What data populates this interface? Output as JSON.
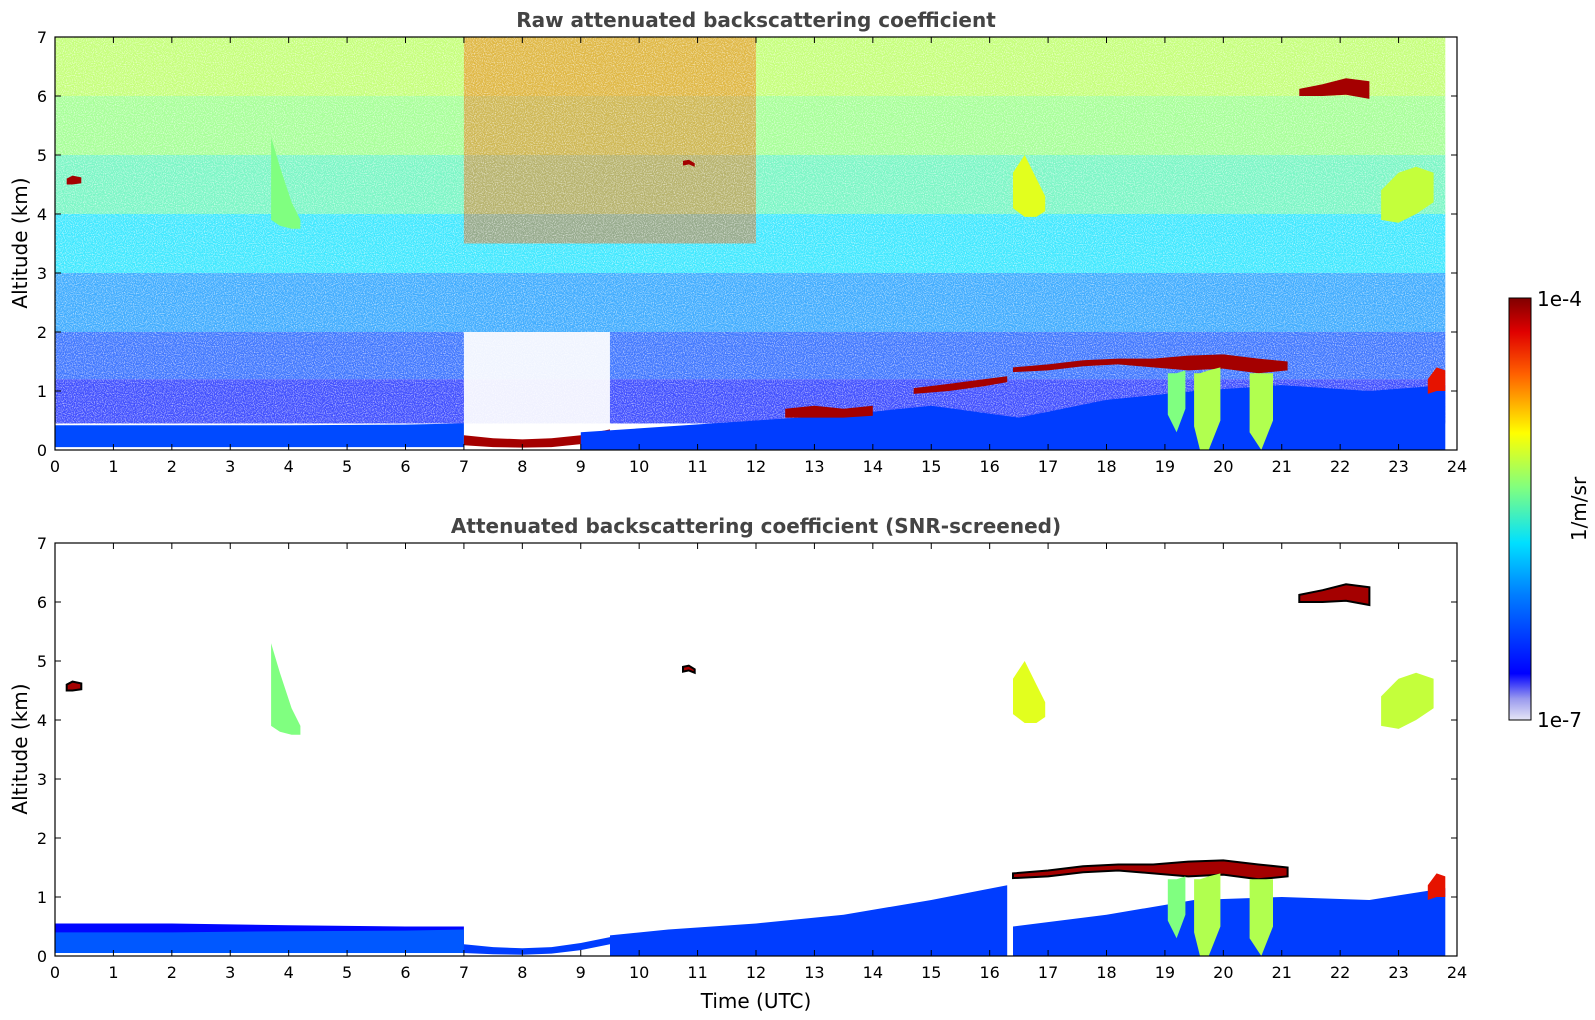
{
  "chart_data": [
    {
      "type": "heatmap",
      "title": "Raw attenuated backscattering coefficient",
      "xlabel": "",
      "ylabel": "Altitude (km)",
      "xlim": [
        0,
        24
      ],
      "ylim": [
        0,
        7
      ],
      "x_ticks": [
        0,
        1,
        2,
        3,
        4,
        5,
        6,
        7,
        8,
        9,
        10,
        11,
        12,
        13,
        14,
        15,
        16,
        17,
        18,
        19,
        20,
        21,
        22,
        23,
        24
      ],
      "y_ticks": [
        0,
        1,
        2,
        3,
        4,
        5,
        6,
        7
      ],
      "screened": false,
      "layers": [
        {
          "x": [
            0.0,
            2.0,
            4.0,
            6.0,
            7.0
          ],
          "y_bottom": [
            0.05,
            0.05,
            0.05,
            0.05,
            0.05
          ],
          "y_top": [
            0.42,
            0.42,
            0.42,
            0.43,
            0.45
          ],
          "level": 0.22
        },
        {
          "x": [
            7.0,
            7.5,
            8.0,
            8.5,
            9.0,
            9.5
          ],
          "y_bottom": [
            0.08,
            0.05,
            0.04,
            0.05,
            0.1,
            0.2
          ],
          "y_top": [
            0.25,
            0.2,
            0.18,
            0.2,
            0.25,
            0.35
          ],
          "level": 0.97
        },
        {
          "x": [
            9.0,
            10.5,
            12.0,
            13.5,
            15.0,
            16.5,
            18.0,
            19.5,
            21.0,
            22.5,
            23.8
          ],
          "y_bottom": [
            0.0,
            0.0,
            0.0,
            0.0,
            0.0,
            0.0,
            0.0,
            0.0,
            0.0,
            0.0,
            0.0
          ],
          "y_top": [
            0.3,
            0.4,
            0.5,
            0.6,
            0.75,
            0.55,
            0.85,
            1.0,
            1.1,
            1.0,
            1.1
          ],
          "level": 0.2
        },
        {
          "x": [
            12.5,
            13.0,
            13.5,
            14.0
          ],
          "y_bottom": [
            0.55,
            0.55,
            0.55,
            0.58
          ],
          "y_top": [
            0.7,
            0.75,
            0.7,
            0.75
          ],
          "level": 0.97
        },
        {
          "x": [
            14.7,
            15.3,
            15.9,
            16.3
          ],
          "y_bottom": [
            0.95,
            1.0,
            1.08,
            1.15
          ],
          "y_top": [
            1.05,
            1.12,
            1.2,
            1.25
          ],
          "level": 0.97
        },
        {
          "x": [
            16.4,
            17.0,
            17.6,
            18.2,
            18.8,
            19.4,
            20.0,
            20.6,
            21.1
          ],
          "y_bottom": [
            1.32,
            1.35,
            1.42,
            1.45,
            1.4,
            1.35,
            1.38,
            1.3,
            1.35
          ],
          "y_top": [
            1.4,
            1.45,
            1.52,
            1.55,
            1.55,
            1.6,
            1.62,
            1.55,
            1.5
          ],
          "level": 0.97
        },
        {
          "x": [
            19.05,
            19.2,
            19.35
          ],
          "y_bottom": [
            0.6,
            0.3,
            0.7
          ],
          "y_top": [
            1.3,
            1.3,
            1.35
          ],
          "level": 0.55
        },
        {
          "x": [
            19.5,
            19.6,
            19.75,
            19.95
          ],
          "y_bottom": [
            0.4,
            0.0,
            0.0,
            0.5
          ],
          "y_top": [
            1.3,
            1.3,
            1.35,
            1.4
          ],
          "level": 0.6
        },
        {
          "x": [
            20.45,
            20.65,
            20.85
          ],
          "y_bottom": [
            0.3,
            0.0,
            0.5
          ],
          "y_top": [
            1.3,
            1.3,
            1.3
          ],
          "level": 0.6
        },
        {
          "x": [
            23.5,
            23.65,
            23.8
          ],
          "y_bottom": [
            0.95,
            1.0,
            1.0
          ],
          "y_top": [
            1.2,
            1.4,
            1.35
          ],
          "level": 0.9
        },
        {
          "x": [
            0.2,
            0.3,
            0.45
          ],
          "y_bottom": [
            4.5,
            4.5,
            4.52
          ],
          "y_top": [
            4.6,
            4.65,
            4.62
          ],
          "level": 0.97
        },
        {
          "x": [
            3.7,
            3.85,
            4.05,
            4.2
          ],
          "y_bottom": [
            3.9,
            3.8,
            3.75,
            3.75
          ],
          "y_top": [
            5.3,
            4.8,
            4.2,
            3.9
          ],
          "level": 0.55
        },
        {
          "x": [
            10.75,
            10.85,
            10.95
          ],
          "y_bottom": [
            4.82,
            4.84,
            4.8
          ],
          "y_top": [
            4.9,
            4.92,
            4.86
          ],
          "level": 0.97
        },
        {
          "x": [
            16.4,
            16.6,
            16.8,
            16.95
          ],
          "y_bottom": [
            4.1,
            3.95,
            3.95,
            4.05
          ],
          "y_top": [
            4.7,
            5.0,
            4.6,
            4.3
          ],
          "level": 0.65
        },
        {
          "x": [
            21.3,
            21.7,
            22.1,
            22.5
          ],
          "y_bottom": [
            6.0,
            6.0,
            6.02,
            5.95
          ],
          "y_top": [
            6.12,
            6.2,
            6.3,
            6.25
          ],
          "level": 0.97
        },
        {
          "x": [
            22.7,
            23.0,
            23.3,
            23.6
          ],
          "y_bottom": [
            3.9,
            3.85,
            4.0,
            4.2
          ],
          "y_top": [
            4.4,
            4.7,
            4.8,
            4.7
          ],
          "level": 0.62
        }
      ]
    },
    {
      "type": "heatmap",
      "title": "Attenuated backscattering coefficient (SNR-screened)",
      "xlabel": "Time (UTC)",
      "ylabel": "Altitude (km)",
      "xlim": [
        0,
        24
      ],
      "ylim": [
        0,
        7
      ],
      "x_ticks": [
        0,
        1,
        2,
        3,
        4,
        5,
        6,
        7,
        8,
        9,
        10,
        11,
        12,
        13,
        14,
        15,
        16,
        17,
        18,
        19,
        20,
        21,
        22,
        23,
        24
      ],
      "y_ticks": [
        0,
        1,
        2,
        3,
        4,
        5,
        6,
        7
      ],
      "screened": true,
      "layers": [
        {
          "x": [
            0.0,
            2.0,
            4.0,
            6.0,
            7.0
          ],
          "y_bottom": [
            0.05,
            0.05,
            0.05,
            0.05,
            0.05
          ],
          "y_top": [
            0.55,
            0.55,
            0.52,
            0.5,
            0.5
          ],
          "level": 0.12
        },
        {
          "x": [
            0.0,
            2.0,
            4.0,
            6.0,
            7.0
          ],
          "y_bottom": [
            0.05,
            0.05,
            0.05,
            0.05,
            0.05
          ],
          "y_top": [
            0.4,
            0.4,
            0.42,
            0.43,
            0.45
          ],
          "level": 0.24
        },
        {
          "x": [
            7.0,
            7.5,
            8.0,
            8.5,
            9.0,
            9.5
          ],
          "y_bottom": [
            0.05,
            0.03,
            0.02,
            0.04,
            0.1,
            0.2
          ],
          "y_top": [
            0.2,
            0.15,
            0.13,
            0.15,
            0.22,
            0.32
          ],
          "level": 0.2
        },
        {
          "x": [
            9.5,
            10.5,
            12.0,
            13.5,
            15.0,
            16.3
          ],
          "y_bottom": [
            0.0,
            0.0,
            0.0,
            0.0,
            0.0,
            0.0
          ],
          "y_top": [
            0.35,
            0.45,
            0.55,
            0.7,
            0.95,
            1.2
          ],
          "level": 0.2
        },
        {
          "x": [
            16.4,
            18.0,
            19.5,
            21.0,
            22.5,
            23.8
          ],
          "y_bottom": [
            0.0,
            0.0,
            0.0,
            0.0,
            0.0,
            0.0
          ],
          "y_top": [
            0.5,
            0.7,
            0.95,
            1.0,
            0.95,
            1.15
          ],
          "level": 0.2
        },
        {
          "x": [
            16.4,
            17.0,
            17.6,
            18.2,
            18.8,
            19.4,
            20.0,
            20.6,
            21.1
          ],
          "y_bottom": [
            1.32,
            1.35,
            1.42,
            1.45,
            1.4,
            1.35,
            1.38,
            1.3,
            1.35
          ],
          "y_top": [
            1.4,
            1.45,
            1.52,
            1.55,
            1.55,
            1.6,
            1.62,
            1.55,
            1.5
          ],
          "level": 0.97
        },
        {
          "x": [
            19.05,
            19.2,
            19.35
          ],
          "y_bottom": [
            0.6,
            0.3,
            0.7
          ],
          "y_top": [
            1.3,
            1.3,
            1.35
          ],
          "level": 0.55
        },
        {
          "x": [
            19.5,
            19.6,
            19.75,
            19.95
          ],
          "y_bottom": [
            0.4,
            0.0,
            0.0,
            0.5
          ],
          "y_top": [
            1.3,
            1.3,
            1.35,
            1.4
          ],
          "level": 0.6
        },
        {
          "x": [
            20.45,
            20.65,
            20.85
          ],
          "y_bottom": [
            0.3,
            0.0,
            0.5
          ],
          "y_top": [
            1.3,
            1.3,
            1.3
          ],
          "level": 0.6
        },
        {
          "x": [
            23.5,
            23.65,
            23.8
          ],
          "y_bottom": [
            0.95,
            1.0,
            1.0
          ],
          "y_top": [
            1.2,
            1.4,
            1.35
          ],
          "level": 0.9
        },
        {
          "x": [
            0.2,
            0.3,
            0.45
          ],
          "y_bottom": [
            4.5,
            4.5,
            4.52
          ],
          "y_top": [
            4.6,
            4.65,
            4.62
          ],
          "level": 0.97
        },
        {
          "x": [
            3.7,
            3.85,
            4.05,
            4.2
          ],
          "y_bottom": [
            3.9,
            3.8,
            3.75,
            3.75
          ],
          "y_top": [
            5.3,
            4.8,
            4.2,
            3.9
          ],
          "level": 0.55
        },
        {
          "x": [
            10.75,
            10.85,
            10.95
          ],
          "y_bottom": [
            4.82,
            4.84,
            4.8
          ],
          "y_top": [
            4.9,
            4.92,
            4.86
          ],
          "level": 0.97
        },
        {
          "x": [
            16.4,
            16.6,
            16.8,
            16.95
          ],
          "y_bottom": [
            4.1,
            3.95,
            3.95,
            4.05
          ],
          "y_top": [
            4.7,
            5.0,
            4.6,
            4.3
          ],
          "level": 0.65
        },
        {
          "x": [
            21.3,
            21.7,
            22.1,
            22.5
          ],
          "y_bottom": [
            6.0,
            6.0,
            6.02,
            5.95
          ],
          "y_top": [
            6.12,
            6.2,
            6.3,
            6.25
          ],
          "level": 0.97
        },
        {
          "x": [
            22.7,
            23.0,
            23.3,
            23.6
          ],
          "y_bottom": [
            3.9,
            3.85,
            4.0,
            4.2
          ],
          "y_top": [
            4.4,
            4.7,
            4.8,
            4.7
          ],
          "level": 0.62
        }
      ]
    }
  ],
  "colorbar": {
    "label": "1/m/sr",
    "max_label": "1e-4",
    "min_label": "1e-7",
    "colormap": "jet",
    "scale": "log",
    "range": [
      1e-07,
      0.0001
    ]
  }
}
